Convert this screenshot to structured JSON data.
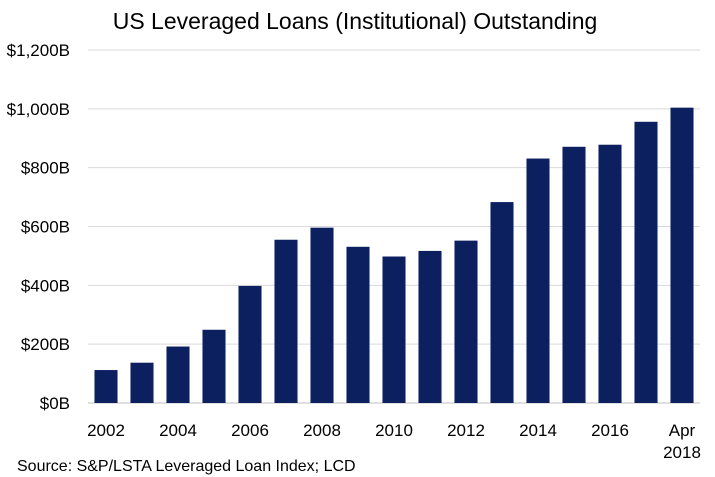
{
  "chart_data": {
    "type": "bar",
    "title": "US Leveraged Loans (Institutional) Outstanding",
    "source": "Source: S&P/LSTA  Leveraged Loan Index; LCD",
    "xlabel": "",
    "ylabel": "",
    "ylim": [
      0,
      1200
    ],
    "y_tick_values": [
      0,
      200,
      400,
      600,
      800,
      1000,
      1200
    ],
    "y_tick_labels": [
      "$0B",
      "$200B",
      "$400B",
      "$600B",
      "$800B",
      "$1,000B",
      "$1,200B"
    ],
    "categories": [
      "2002",
      "2003",
      "2004",
      "2005",
      "2006",
      "2007",
      "2008",
      "2009",
      "2010",
      "2011",
      "2012",
      "2013",
      "2014",
      "2015",
      "2016",
      "2017",
      "Apr 2018"
    ],
    "x_tick_labels": [
      "2002",
      "",
      "2004",
      "",
      "2006",
      "",
      "2008",
      "",
      "2010",
      "",
      "2012",
      "",
      "2014",
      "",
      "2016",
      "",
      "Apr 2018"
    ],
    "values": [
      112,
      137,
      192,
      249,
      398,
      555,
      596,
      531,
      498,
      517,
      552,
      683,
      831,
      871,
      878,
      956,
      1004
    ],
    "bar_color": "#0c2060",
    "grid": true,
    "grid_color": "#d9d9d9",
    "legend": "none"
  }
}
